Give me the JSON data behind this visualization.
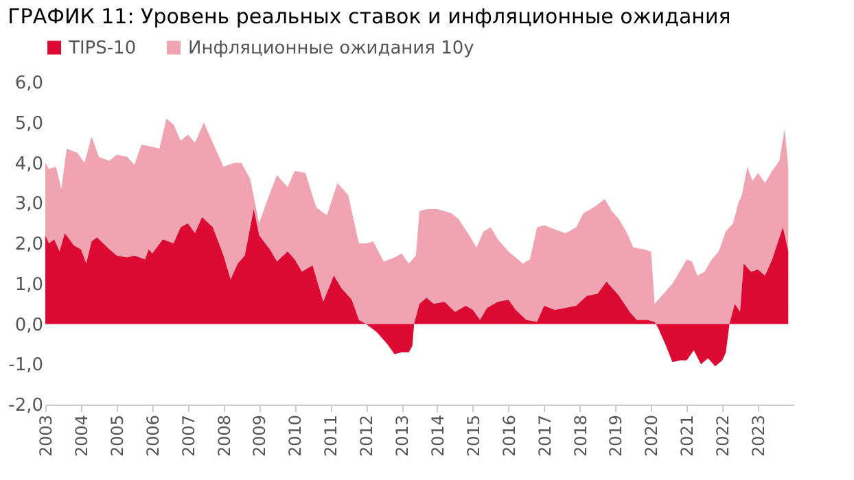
{
  "chart_data": {
    "type": "area",
    "title": "ГРАФИК 11: Уровень реальных ставок и инфляционные ожидания",
    "xlim": [
      2003,
      2024
    ],
    "xticks": [
      2003,
      2004,
      2005,
      2006,
      2007,
      2008,
      2009,
      2010,
      2011,
      2012,
      2013,
      2014,
      2015,
      2016,
      2017,
      2018,
      2019,
      2020,
      2021,
      2022,
      2023
    ],
    "ylim": [
      -2,
      6
    ],
    "yticks": [
      {
        "value": -2,
        "label": "-2,0"
      },
      {
        "value": -1,
        "label": "-1,0"
      },
      {
        "value": 0,
        "label": "0,0"
      },
      {
        "value": 1,
        "label": "1,0"
      },
      {
        "value": 2,
        "label": "2,0"
      },
      {
        "value": 3,
        "label": "3,0"
      },
      {
        "value": 4,
        "label": "4,0"
      },
      {
        "value": 5,
        "label": "5,0"
      },
      {
        "value": 6,
        "label": "6,0"
      }
    ],
    "grid": false,
    "legend": "top",
    "series": [
      {
        "name": "TIPS-10",
        "color": "#dc0a32",
        "x": [
          2003.0,
          2003.1,
          2003.25,
          2003.4,
          2003.55,
          2003.8,
          2004.0,
          2004.15,
          2004.3,
          2004.45,
          2004.8,
          2005.0,
          2005.3,
          2005.5,
          2005.8,
          2005.9,
          2006.0,
          2006.3,
          2006.6,
          2006.8,
          2007.0,
          2007.2,
          2007.4,
          2007.7,
          2008.0,
          2008.2,
          2008.4,
          2008.6,
          2008.85,
          2009.0,
          2009.3,
          2009.5,
          2009.8,
          2010.0,
          2010.2,
          2010.5,
          2010.8,
          2011.1,
          2011.3,
          2011.6,
          2011.8,
          2012.0,
          2012.3,
          2012.6,
          2012.8,
          2013.0,
          2013.2,
          2013.3,
          2013.35,
          2013.5,
          2013.7,
          2013.9,
          2014.2,
          2014.5,
          2014.8,
          2015.0,
          2015.2,
          2015.4,
          2015.7,
          2016.0,
          2016.2,
          2016.5,
          2016.8,
          2017.0,
          2017.3,
          2017.6,
          2017.9,
          2018.2,
          2018.5,
          2018.75,
          2019.1,
          2019.4,
          2019.6,
          2019.9,
          2020.1,
          2020.2,
          2020.4,
          2020.6,
          2020.8,
          2021.0,
          2021.2,
          2021.4,
          2021.6,
          2021.8,
          2022.0,
          2022.1,
          2022.2,
          2022.35,
          2022.5,
          2022.6,
          2022.8,
          2023.0,
          2023.2,
          2023.4,
          2023.7,
          2023.85
        ],
        "values": [
          2.2,
          2.0,
          2.1,
          1.8,
          2.25,
          1.95,
          1.85,
          1.5,
          2.05,
          2.15,
          1.85,
          1.7,
          1.65,
          1.7,
          1.6,
          1.85,
          1.75,
          2.1,
          2.0,
          2.4,
          2.5,
          2.25,
          2.65,
          2.4,
          1.7,
          1.1,
          1.5,
          1.7,
          2.85,
          2.2,
          1.85,
          1.55,
          1.8,
          1.6,
          1.3,
          1.45,
          0.55,
          1.2,
          0.9,
          0.6,
          0.1,
          0.0,
          -0.2,
          -0.5,
          -0.75,
          -0.7,
          -0.7,
          -0.55,
          0.0,
          0.5,
          0.65,
          0.5,
          0.55,
          0.3,
          0.45,
          0.35,
          0.1,
          0.4,
          0.55,
          0.6,
          0.35,
          0.1,
          0.05,
          0.45,
          0.35,
          0.4,
          0.45,
          0.7,
          0.75,
          1.05,
          0.7,
          0.3,
          0.1,
          0.1,
          0.05,
          -0.1,
          -0.5,
          -0.95,
          -0.9,
          -0.9,
          -0.65,
          -1.0,
          -0.85,
          -1.05,
          -0.9,
          -0.7,
          0.0,
          0.5,
          0.3,
          1.5,
          1.3,
          1.35,
          1.2,
          1.6,
          2.4,
          1.8
        ]
      },
      {
        "name": "Инфляционные ожидания 10y",
        "color": "#f0a3b0",
        "x": [
          2003.0,
          2003.1,
          2003.3,
          2003.45,
          2003.6,
          2003.9,
          2004.1,
          2004.3,
          2004.5,
          2004.8,
          2005.0,
          2005.3,
          2005.5,
          2005.7,
          2006.0,
          2006.2,
          2006.4,
          2006.6,
          2006.8,
          2007.0,
          2007.2,
          2007.45,
          2007.7,
          2008.0,
          2008.3,
          2008.5,
          2008.75,
          2009.0,
          2009.2,
          2009.5,
          2009.8,
          2010.0,
          2010.3,
          2010.6,
          2010.9,
          2011.2,
          2011.5,
          2011.8,
          2012.0,
          2012.2,
          2012.5,
          2012.8,
          2013.0,
          2013.2,
          2013.4,
          2013.5,
          2013.7,
          2014.0,
          2014.4,
          2014.6,
          2014.9,
          2015.1,
          2015.3,
          2015.5,
          2015.7,
          2016.0,
          2016.2,
          2016.4,
          2016.6,
          2016.8,
          2017.0,
          2017.3,
          2017.6,
          2017.9,
          2018.1,
          2018.4,
          2018.7,
          2018.9,
          2019.1,
          2019.3,
          2019.5,
          2019.8,
          2020.0,
          2020.1,
          2020.4,
          2020.6,
          2020.8,
          2021.0,
          2021.15,
          2021.3,
          2021.5,
          2021.7,
          2021.9,
          2022.1,
          2022.3,
          2022.45,
          2022.55,
          2022.7,
          2022.85,
          2023.0,
          2023.2,
          2023.4,
          2023.6,
          2023.75,
          2023.85
        ],
        "values": [
          4.0,
          3.85,
          3.9,
          3.35,
          4.35,
          4.25,
          4.0,
          4.65,
          4.15,
          4.05,
          4.2,
          4.15,
          3.95,
          4.45,
          4.4,
          4.35,
          5.1,
          4.95,
          4.55,
          4.7,
          4.5,
          5.0,
          4.5,
          3.9,
          4.0,
          4.0,
          3.6,
          2.5,
          3.0,
          3.7,
          3.4,
          3.8,
          3.75,
          2.9,
          2.7,
          3.5,
          3.2,
          2.0,
          2.0,
          2.05,
          1.55,
          1.65,
          1.75,
          1.5,
          1.7,
          2.8,
          2.85,
          2.85,
          2.75,
          2.6,
          2.2,
          1.9,
          2.3,
          2.4,
          2.1,
          1.8,
          1.65,
          1.5,
          1.6,
          2.4,
          2.45,
          2.35,
          2.25,
          2.4,
          2.75,
          2.9,
          3.1,
          2.8,
          2.6,
          2.3,
          1.9,
          1.85,
          1.8,
          0.5,
          0.8,
          1.0,
          1.3,
          1.6,
          1.55,
          1.2,
          1.3,
          1.6,
          1.8,
          2.3,
          2.5,
          3.0,
          3.2,
          3.9,
          3.55,
          3.75,
          3.5,
          3.8,
          4.05,
          4.85,
          3.9
        ]
      }
    ]
  }
}
